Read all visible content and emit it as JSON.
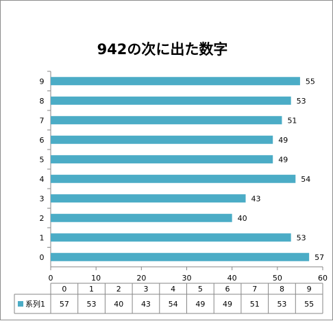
{
  "chart_data": {
    "type": "bar",
    "orientation": "horizontal",
    "title": "942の次に出た数字",
    "categories": [
      "0",
      "1",
      "2",
      "3",
      "4",
      "5",
      "6",
      "7",
      "8",
      "9"
    ],
    "series": [
      {
        "name": "系列1",
        "values": [
          57,
          53,
          40,
          43,
          54,
          49,
          49,
          51,
          53,
          55
        ]
      }
    ],
    "xlim": [
      0,
      60
    ],
    "x_ticks": [
      0,
      10,
      20,
      30,
      40,
      50,
      60
    ],
    "grid": false,
    "data_labels": true,
    "data_table": true,
    "color": "#4bacc6"
  }
}
